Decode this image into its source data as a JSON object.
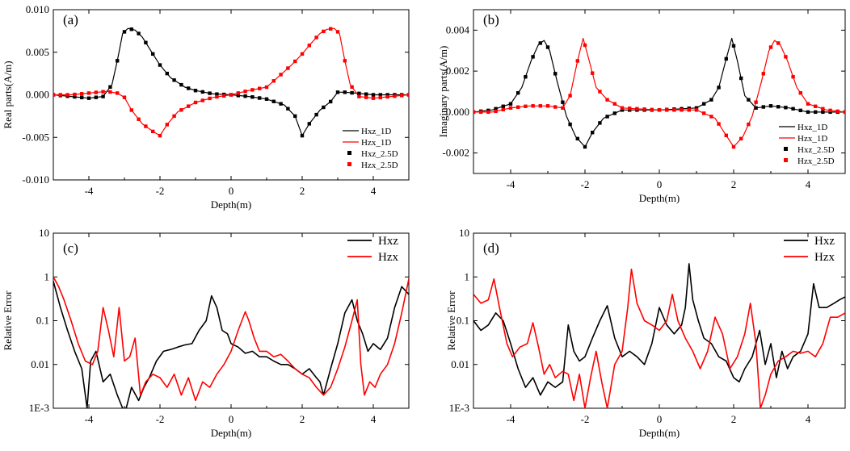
{
  "chart_data": [
    {
      "id": "a",
      "type": "line",
      "panel_label": "(a)",
      "xlabel": "Depth(m)",
      "ylabel": "Real parts(A/m)",
      "xlim": [
        -5,
        5
      ],
      "ylim": [
        -0.01,
        0.01
      ],
      "yscale": "linear",
      "xticks": [
        -4,
        -2,
        0,
        2,
        4
      ],
      "xtick_labels": [
        "-4",
        "-2",
        "0",
        "2",
        "4"
      ],
      "yticks": [
        -0.01,
        -0.005,
        0,
        0.005,
        0.01
      ],
      "ytick_labels": [
        "-0.010",
        "-0.005",
        "0.000",
        "0.005",
        "0.010"
      ],
      "legend": [
        "Hxz_1D",
        "Hzx_1D",
        "Hxz_2.5D",
        "Hzx_2.5D"
      ],
      "legend_position": "bottom-right",
      "series": [
        {
          "name": "Hxz_1D",
          "color": "#000000",
          "style": "line",
          "x": [
            -5,
            -4.5,
            -4,
            -3.6,
            -3.35,
            -3.2,
            -3.05,
            -2.9,
            -2.7,
            -2.5,
            -2.2,
            -2,
            -1.7,
            -1.3,
            -1,
            -0.5,
            0,
            0.5,
            1,
            1.5,
            1.8,
            2,
            2.2,
            2.5,
            2.8,
            3,
            3.2,
            3.5,
            4,
            4.5,
            5
          ],
          "y": [
            0,
            -0.0002,
            -0.0004,
            -0.0002,
            0.0012,
            0.004,
            0.0072,
            0.0078,
            0.0076,
            0.0068,
            0.0048,
            0.0035,
            0.002,
            0.0009,
            0.0005,
            0.0001,
            0,
            -0.0002,
            -0.0005,
            -0.0012,
            -0.0025,
            -0.0048,
            -0.0034,
            -0.0018,
            -0.0008,
            0.0003,
            0.0003,
            0.0002,
            0,
            0,
            0
          ]
        },
        {
          "name": "Hzx_1D",
          "color": "#ff0000",
          "style": "line",
          "x": [
            -5,
            -4.5,
            -4,
            -3.5,
            -3.2,
            -3,
            -2.8,
            -2.5,
            -2.2,
            -2,
            -1.8,
            -1.5,
            -1,
            -0.5,
            0,
            0.5,
            1,
            1.3,
            1.7,
            2,
            2.2,
            2.5,
            2.7,
            2.9,
            3.05,
            3.2,
            3.35,
            3.6,
            4,
            4.5,
            5
          ],
          "y": [
            0,
            0,
            0.0002,
            0.0004,
            0.0002,
            -0.0003,
            -0.0018,
            -0.0034,
            -0.0043,
            -0.0048,
            -0.0035,
            -0.002,
            -0.0009,
            -0.0003,
            0,
            0.0005,
            0.0009,
            0.002,
            0.0035,
            0.0048,
            0.0058,
            0.0072,
            0.0077,
            0.0078,
            0.0072,
            0.004,
            0.0012,
            -0.0002,
            -0.0004,
            -0.0002,
            0
          ]
        },
        {
          "name": "Hxz_2.5D",
          "color": "#000000",
          "style": "marker",
          "marker": "square",
          "from": "Hxz_1D"
        },
        {
          "name": "Hzx_2.5D",
          "color": "#ff0000",
          "style": "marker",
          "marker": "square",
          "from": "Hzx_1D"
        }
      ]
    },
    {
      "id": "b",
      "type": "line",
      "panel_label": "(b)",
      "xlabel": "Depth(m)",
      "ylabel": "Imaginary parts(A/m)",
      "xlim": [
        -5,
        5
      ],
      "ylim": [
        -0.003,
        0.005
      ],
      "yscale": "linear",
      "xticks": [
        -4,
        -2,
        0,
        2,
        4
      ],
      "xtick_labels": [
        "-4",
        "-2",
        "0",
        "2",
        "4"
      ],
      "yticks": [
        -0.002,
        0,
        0.002,
        0.004
      ],
      "ytick_labels": [
        "-0.002",
        "0.000",
        "0.002",
        "0.004"
      ],
      "legend": [
        "Hxz_1D",
        "Hzx_1D",
        "Hxz_2.5D",
        "Hzx_2.5D"
      ],
      "legend_position": "bottom-right",
      "series": [
        {
          "name": "Hxz_1D",
          "color": "#000000",
          "style": "line",
          "x": [
            -5,
            -4.5,
            -4,
            -3.7,
            -3.45,
            -3.25,
            -3.1,
            -2.95,
            -2.75,
            -2.5,
            -2.25,
            -2,
            -1.8,
            -1.5,
            -1,
            0,
            1,
            1.4,
            1.6,
            1.8,
            1.95,
            2.1,
            2.3,
            2.6,
            3,
            3.5,
            4,
            4.5,
            5
          ],
          "y": [
            0,
            0.0001,
            0.0004,
            0.0012,
            0.0025,
            0.0033,
            0.0035,
            0.003,
            0.0015,
            -0.0002,
            -0.0012,
            -0.0017,
            -0.001,
            -0.0003,
            0.0001,
            0.0001,
            0.0002,
            0.0006,
            0.0012,
            0.0026,
            0.0036,
            0.0025,
            0.0008,
            0.0002,
            0.0003,
            0.0002,
            0,
            0,
            0
          ]
        },
        {
          "name": "Hzx_1D",
          "color": "#ff0000",
          "style": "line",
          "x": [
            -5,
            -4.5,
            -4,
            -3.5,
            -3,
            -2.6,
            -2.4,
            -2.2,
            -2.05,
            -1.9,
            -1.7,
            -1.4,
            -1,
            0,
            1,
            1.5,
            1.75,
            2,
            2.25,
            2.5,
            2.75,
            2.95,
            3.1,
            3.25,
            3.45,
            3.7,
            4,
            4.5,
            5
          ],
          "y": [
            0,
            0,
            0.0002,
            0.0003,
            0.0003,
            0.0002,
            0.0008,
            0.0025,
            0.0036,
            0.0026,
            0.0012,
            0.0006,
            0.0002,
            0.0001,
            0.0001,
            -0.0003,
            -0.001,
            -0.0017,
            -0.0012,
            -0.0002,
            0.0015,
            0.003,
            0.0035,
            0.0033,
            0.0025,
            0.0012,
            0.0004,
            0.0001,
            0
          ]
        },
        {
          "name": "Hxz_2.5D",
          "color": "#000000",
          "style": "marker",
          "marker": "square",
          "from": "Hxz_1D"
        },
        {
          "name": "Hzx_2.5D",
          "color": "#ff0000",
          "style": "marker",
          "marker": "square",
          "from": "Hzx_1D"
        }
      ]
    },
    {
      "id": "c",
      "type": "line",
      "panel_label": "(c)",
      "xlabel": "Depth(m)",
      "ylabel": "Relative Error",
      "xlim": [
        -5,
        5
      ],
      "ylim": [
        0.001,
        10
      ],
      "yscale": "log",
      "xticks": [
        -4,
        -2,
        0,
        2,
        4
      ],
      "xtick_labels": [
        "-4",
        "-2",
        "0",
        "2",
        "4"
      ],
      "yticks": [
        0.001,
        0.01,
        0.1,
        1,
        10
      ],
      "ytick_labels": [
        "1E-3",
        "0.01",
        "0.1",
        "1",
        "10"
      ],
      "legend": [
        "Hxz",
        "Hzx"
      ],
      "legend_position": "top-right",
      "series": [
        {
          "name": "Hxz",
          "color": "#000000",
          "style": "line",
          "x": [
            -5,
            -4.8,
            -4.6,
            -4.4,
            -4.2,
            -4.05,
            -3.95,
            -3.8,
            -3.6,
            -3.4,
            -3.2,
            -3.05,
            -2.95,
            -2.8,
            -2.6,
            -2.45,
            -2.3,
            -2.1,
            -1.9,
            -1.7,
            -1.5,
            -1.3,
            -1.1,
            -0.9,
            -0.7,
            -0.55,
            -0.4,
            -0.25,
            -0.1,
            0,
            0.2,
            0.4,
            0.6,
            0.8,
            1,
            1.2,
            1.4,
            1.6,
            1.8,
            2,
            2.2,
            2.4,
            2.5,
            2.6,
            2.8,
            3,
            3.2,
            3.4,
            3.55,
            3.7,
            3.85,
            4,
            4.2,
            4.4,
            4.6,
            4.8,
            5
          ],
          "y": [
            0.8,
            0.2,
            0.06,
            0.02,
            0.008,
            0.001,
            0.012,
            0.02,
            0.004,
            0.006,
            0.002,
            0.001,
            0.001,
            0.003,
            0.0015,
            0.003,
            0.005,
            0.012,
            0.02,
            0.022,
            0.025,
            0.028,
            0.03,
            0.06,
            0.1,
            0.37,
            0.2,
            0.06,
            0.05,
            0.03,
            0.025,
            0.018,
            0.02,
            0.015,
            0.015,
            0.012,
            0.01,
            0.01,
            0.008,
            0.006,
            0.008,
            0.005,
            0.004,
            0.002,
            0.008,
            0.03,
            0.15,
            0.3,
            0.1,
            0.05,
            0.02,
            0.03,
            0.022,
            0.04,
            0.2,
            0.6,
            0.4
          ]
        },
        {
          "name": "Hzx",
          "color": "#ff0000",
          "style": "line",
          "x": [
            -5,
            -4.85,
            -4.7,
            -4.5,
            -4.3,
            -4.1,
            -3.9,
            -3.75,
            -3.6,
            -3.45,
            -3.3,
            -3.15,
            -3,
            -2.85,
            -2.7,
            -2.55,
            -2.4,
            -2.2,
            -2,
            -1.8,
            -1.6,
            -1.4,
            -1.2,
            -1,
            -0.8,
            -0.6,
            -0.4,
            -0.2,
            0,
            0.2,
            0.4,
            0.5,
            0.65,
            0.8,
            1,
            1.2,
            1.4,
            1.6,
            1.8,
            2,
            2.2,
            2.4,
            2.6,
            2.8,
            3,
            3.2,
            3.4,
            3.55,
            3.65,
            3.75,
            3.9,
            4.05,
            4.2,
            4.4,
            4.6,
            4.8,
            5
          ],
          "y": [
            1,
            0.6,
            0.3,
            0.1,
            0.03,
            0.012,
            0.01,
            0.02,
            0.2,
            0.06,
            0.015,
            0.2,
            0.012,
            0.015,
            0.04,
            0.002,
            0.004,
            0.006,
            0.005,
            0.003,
            0.006,
            0.002,
            0.005,
            0.0015,
            0.004,
            0.003,
            0.006,
            0.01,
            0.02,
            0.06,
            0.16,
            0.1,
            0.04,
            0.02,
            0.02,
            0.015,
            0.017,
            0.012,
            0.008,
            0.006,
            0.005,
            0.003,
            0.002,
            0.003,
            0.008,
            0.025,
            0.1,
            0.3,
            0.01,
            0.002,
            0.004,
            0.003,
            0.006,
            0.01,
            0.03,
            0.15,
            0.9
          ]
        }
      ]
    },
    {
      "id": "d",
      "type": "line",
      "panel_label": "(d)",
      "xlabel": "Depth(m)",
      "ylabel": "Relative Error",
      "xlim": [
        -5,
        5
      ],
      "ylim": [
        0.001,
        10
      ],
      "yscale": "log",
      "xticks": [
        -4,
        -2,
        0,
        2,
        4
      ],
      "xtick_labels": [
        "-4",
        "-2",
        "0",
        "2",
        "4"
      ],
      "yticks": [
        0.001,
        0.01,
        0.1,
        1,
        10
      ],
      "ytick_labels": [
        "1E-3",
        "0.01",
        "0.1",
        "1",
        "10"
      ],
      "legend": [
        "Hxz",
        "Hzx"
      ],
      "legend_position": "top-right",
      "series": [
        {
          "name": "Hxz",
          "color": "#000000",
          "style": "line",
          "x": [
            -5,
            -4.8,
            -4.6,
            -4.4,
            -4.2,
            -4,
            -3.8,
            -3.6,
            -3.4,
            -3.2,
            -3,
            -2.8,
            -2.6,
            -2.45,
            -2.3,
            -2.15,
            -2,
            -1.8,
            -1.6,
            -1.4,
            -1.2,
            -1,
            -0.8,
            -0.6,
            -0.4,
            -0.2,
            0,
            0.2,
            0.4,
            0.6,
            0.7,
            0.8,
            0.9,
            1.05,
            1.2,
            1.4,
            1.6,
            1.8,
            2,
            2.15,
            2.3,
            2.5,
            2.7,
            2.85,
            3,
            3.15,
            3.3,
            3.45,
            3.6,
            3.8,
            4,
            4.15,
            4.3,
            4.5,
            4.7,
            4.85,
            5
          ],
          "y": [
            0.1,
            0.06,
            0.08,
            0.15,
            0.1,
            0.03,
            0.008,
            0.003,
            0.005,
            0.002,
            0.004,
            0.003,
            0.004,
            0.08,
            0.02,
            0.012,
            0.015,
            0.04,
            0.1,
            0.22,
            0.04,
            0.015,
            0.02,
            0.015,
            0.01,
            0.03,
            0.2,
            0.08,
            0.05,
            0.08,
            0.2,
            2,
            0.3,
            0.1,
            0.04,
            0.03,
            0.015,
            0.012,
            0.005,
            0.004,
            0.008,
            0.015,
            0.06,
            0.01,
            0.03,
            0.005,
            0.02,
            0.008,
            0.015,
            0.02,
            0.05,
            0.7,
            0.2,
            0.2,
            0.25,
            0.3,
            0.35
          ]
        },
        {
          "name": "Hzx",
          "color": "#ff0000",
          "style": "line",
          "x": [
            -5,
            -4.8,
            -4.6,
            -4.45,
            -4.3,
            -4.1,
            -3.95,
            -3.75,
            -3.55,
            -3.4,
            -3.25,
            -3.1,
            -2.95,
            -2.8,
            -2.6,
            -2.45,
            -2.3,
            -2.15,
            -2,
            -1.85,
            -1.7,
            -1.55,
            -1.4,
            -1.2,
            -1,
            -0.85,
            -0.75,
            -0.6,
            -0.4,
            -0.2,
            0,
            0.2,
            0.35,
            0.5,
            0.7,
            0.9,
            1.1,
            1.3,
            1.5,
            1.7,
            1.9,
            2.1,
            2.3,
            2.45,
            2.6,
            2.72,
            2.85,
            3,
            3.2,
            3.4,
            3.6,
            3.8,
            4,
            4.2,
            4.4,
            4.6,
            4.8,
            5
          ],
          "y": [
            0.4,
            0.25,
            0.3,
            0.9,
            0.2,
            0.03,
            0.015,
            0.025,
            0.03,
            0.09,
            0.025,
            0.006,
            0.01,
            0.005,
            0.007,
            0.006,
            0.0015,
            0.006,
            0.001,
            0.005,
            0.02,
            0.004,
            0.001,
            0.01,
            0.02,
            0.2,
            1.5,
            0.25,
            0.1,
            0.08,
            0.06,
            0.1,
            0.4,
            0.1,
            0.04,
            0.02,
            0.008,
            0.02,
            0.12,
            0.05,
            0.008,
            0.015,
            0.05,
            0.25,
            0.03,
            0.001,
            0.002,
            0.006,
            0.012,
            0.015,
            0.02,
            0.018,
            0.02,
            0.015,
            0.03,
            0.12,
            0.12,
            0.15
          ]
        }
      ]
    }
  ]
}
